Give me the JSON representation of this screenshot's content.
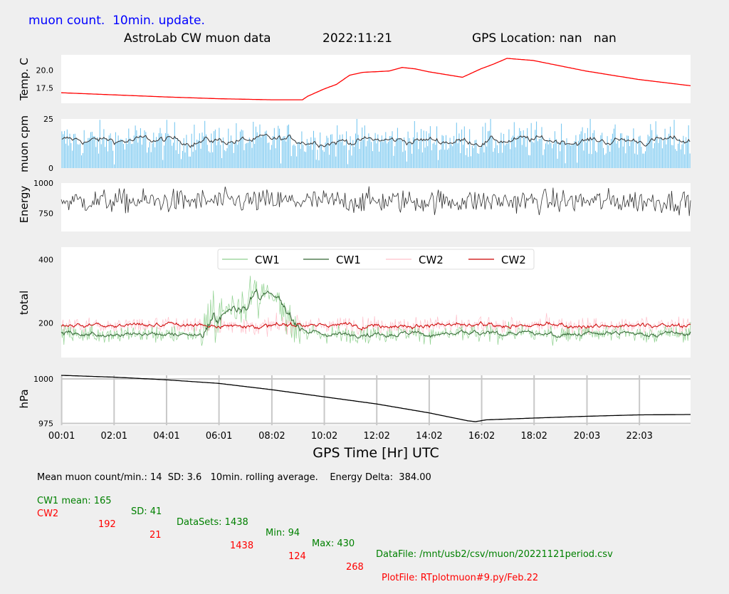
{
  "header": {
    "top_title": "muon count.  10min. update.",
    "subtitle_left": "AstroLab CW muon data",
    "subtitle_date": "2022:11:21",
    "subtitle_gps": "GPS Location: nan   nan",
    "top_title_color": "#0000ff"
  },
  "chart_data": [
    {
      "type": "line",
      "name": "temperature",
      "ylabel": "Temp. C",
      "ylim": [
        15.3,
        22.2
      ],
      "yticks": [
        "20.0",
        "17.5"
      ],
      "x": [
        0.0,
        2.0,
        4.0,
        6.0,
        8.0,
        9.2,
        9.4,
        10.0,
        10.5,
        11.0,
        11.5,
        12.5,
        13.0,
        13.5,
        14.0,
        15.3,
        16.0,
        16.5,
        17.0,
        18.0,
        20.0,
        22.0,
        24.0
      ],
      "y": [
        16.8,
        16.5,
        16.2,
        15.95,
        15.8,
        15.8,
        16.3,
        17.3,
        18.0,
        19.3,
        19.7,
        19.9,
        20.4,
        20.2,
        19.8,
        19.0,
        20.2,
        20.9,
        21.7,
        21.4,
        19.9,
        18.7,
        17.8
      ],
      "color": "#ff0000"
    },
    {
      "type": "bar",
      "name": "muon-cpm",
      "ylabel": "muon cpm",
      "ylim": [
        0,
        25
      ],
      "yticks": [
        "25",
        "0"
      ],
      "mean": 14,
      "sd": 3.6,
      "bar_color": "#6ec3ee",
      "avg_color": "#333333"
    },
    {
      "type": "line",
      "name": "energy",
      "ylabel": "Energy",
      "ylim": [
        600,
        1000
      ],
      "yticks": [
        "1000",
        "750"
      ],
      "mean": 850,
      "sd": 55,
      "color": "#333333"
    },
    {
      "type": "line",
      "name": "total",
      "ylabel": "total",
      "ylim": [
        90,
        440
      ],
      "yticks": [
        "400",
        "200"
      ],
      "legend": [
        "CW1",
        "CW1",
        "CW2",
        "CW2"
      ],
      "legend_colors": [
        "#8fd18f",
        "#336633",
        "#ffc0cb",
        "#cc0000"
      ],
      "cw1_mean": 165,
      "cw1_burst": {
        "start": 5.3,
        "end": 9.2,
        "peak": 310
      },
      "cw2_mean": 192
    },
    {
      "type": "line",
      "name": "pressure",
      "ylabel": "hPa",
      "ylim": [
        974,
        1002
      ],
      "yticks": [
        "1000",
        "975"
      ],
      "x": [
        0.0,
        2.0,
        4.0,
        6.0,
        8.0,
        10.0,
        12.0,
        14.0,
        15.5,
        15.8,
        16.2,
        18.0,
        20.0,
        22.0,
        24.0
      ],
      "y": [
        1002,
        1001,
        999.5,
        997.5,
        994,
        990,
        986,
        981,
        976.5,
        976,
        977,
        978,
        979,
        979.8,
        980
      ],
      "color": "#000000"
    }
  ],
  "x_axis": {
    "label": "GPS Time  [Hr] UTC",
    "range": [
      0,
      24
    ],
    "ticks": [
      {
        "value": 0.0167,
        "label": "00:01"
      },
      {
        "value": 2.0167,
        "label": "02:01"
      },
      {
        "value": 4.0167,
        "label": "04:01"
      },
      {
        "value": 6.0167,
        "label": "06:01"
      },
      {
        "value": 8.0333,
        "label": "08:02"
      },
      {
        "value": 10.0333,
        "label": "10:02"
      },
      {
        "value": 12.0333,
        "label": "12:02"
      },
      {
        "value": 14.0333,
        "label": "14:02"
      },
      {
        "value": 16.0333,
        "label": "16:02"
      },
      {
        "value": 18.0333,
        "label": "18:02"
      },
      {
        "value": 20.05,
        "label": "20:03"
      },
      {
        "value": 22.05,
        "label": "22:03"
      }
    ]
  },
  "footer": {
    "line1": "Mean muon count/min.: 14  SD: 3.6   10min. rolling average.    Energy Delta:  384.00",
    "cw1": {
      "label": "CW1 mean: 165",
      "sd": "SD: 41",
      "datasets": "DataSets: 1438",
      "min": "Min: 94",
      "max": "Max: 430",
      "file": "DataFile: /mnt/usb2/csv/muon/20221121period.csv"
    },
    "cw2": {
      "label": "CW2",
      "mean": "192",
      "sd": "21",
      "datasets": "1438",
      "min": "124",
      "max": "268",
      "file": "PlotFile: RTplotmuon#9.py/Feb.22"
    },
    "color_black": "#000000",
    "color_green": "#008000",
    "color_red": "#ff0000"
  }
}
